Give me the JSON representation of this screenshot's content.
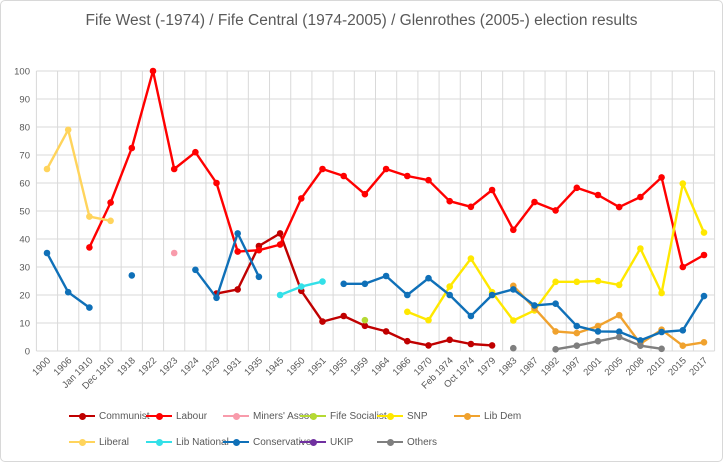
{
  "title": "Fife West (-1974) / Fife Central (1974-2005) / Glenrothes (2005-) election results",
  "colors": {
    "background": "#FFFFFF",
    "frame_border": "#D8D8D8",
    "gridline": "#D9D9D9",
    "axis_text": "#595959",
    "title_text": "#595959",
    "legend_text": "#595959"
  },
  "chart_data": {
    "type": "line",
    "title": "Fife West (-1974) / Fife Central (1974-2005) / Glenrothes (2005-) election results",
    "xlabel": "",
    "ylabel": "",
    "ylim": [
      0,
      100
    ],
    "y_tick_step": 10,
    "grid": true,
    "legend_position": "bottom",
    "categories": [
      "1900",
      "1906",
      "Jan 1910",
      "Dec 1910",
      "1918",
      "1922",
      "1923",
      "1924",
      "1929",
      "1931",
      "1935",
      "1945",
      "1950",
      "1951",
      "1955",
      "1959",
      "1964",
      "1966",
      "1970",
      "Feb 1974",
      "Oct 1974",
      "1979",
      "1983",
      "1987",
      "1992",
      "1997",
      "2001",
      "2005",
      "2008",
      "2010",
      "2015",
      "2017"
    ],
    "series": [
      {
        "name": "Communist",
        "color": "#C00000",
        "legend_row": 0,
        "legend_col": 0,
        "segments": [
          [
            [
              8,
              20.5
            ],
            [
              9,
              22
            ],
            [
              10,
              37.5
            ],
            [
              11,
              42
            ],
            [
              12,
              21.5
            ],
            [
              13,
              10.5
            ],
            [
              14,
              12.5
            ],
            [
              15,
              9
            ],
            [
              16,
              7
            ],
            [
              17,
              3.5
            ],
            [
              18,
              2
            ],
            [
              19,
              4
            ],
            [
              20,
              2.5
            ],
            [
              21,
              2
            ]
          ]
        ]
      },
      {
        "name": "Labour",
        "color": "#FF0000",
        "legend_row": 0,
        "legend_col": 1,
        "segments": [
          [
            [
              2,
              37
            ],
            [
              3,
              53
            ],
            [
              4,
              72.5
            ],
            [
              5,
              100
            ],
            [
              6,
              65
            ],
            [
              7,
              71
            ],
            [
              8,
              60
            ],
            [
              9,
              35.5
            ],
            [
              10,
              36
            ],
            [
              11,
              38
            ],
            [
              12,
              54.5
            ],
            [
              13,
              65
            ],
            [
              14,
              62.5
            ],
            [
              15,
              56
            ],
            [
              16,
              65
            ],
            [
              17,
              62.5
            ],
            [
              18,
              61
            ],
            [
              19,
              53.5
            ],
            [
              20,
              51.5
            ],
            [
              21,
              57.5
            ],
            [
              22,
              43.3
            ],
            [
              23,
              53.2
            ],
            [
              24,
              50.2
            ],
            [
              25,
              58.3
            ],
            [
              26,
              55.7
            ],
            [
              27,
              51.4
            ],
            [
              28,
              55
            ],
            [
              29,
              62
            ],
            [
              30,
              30
            ],
            [
              31,
              34.3
            ]
          ]
        ]
      },
      {
        "name": "Miners' Assoc",
        "color": "#F89BAB",
        "legend_row": 0,
        "legend_col": 2,
        "segments": [
          [
            [
              6,
              35
            ]
          ]
        ]
      },
      {
        "name": "Fife Socialist",
        "color": "#B5D934",
        "legend_row": 0,
        "legend_col": 3,
        "segments": [
          [
            [
              15,
              11
            ]
          ]
        ]
      },
      {
        "name": "SNP",
        "color": "#FFE800",
        "legend_row": 0,
        "legend_col": 4,
        "segments": [
          [
            [
              17,
              14
            ],
            [
              18,
              11
            ],
            [
              19,
              23
            ],
            [
              20,
              33
            ],
            [
              21,
              21
            ],
            [
              22,
              10.9
            ],
            [
              23,
              14.5
            ],
            [
              24,
              24.7
            ],
            [
              25,
              24.7
            ],
            [
              26,
              25
            ],
            [
              27,
              23.6
            ],
            [
              28,
              36.6
            ],
            [
              29,
              20.7
            ],
            [
              30,
              59.8
            ],
            [
              31,
              42.3
            ]
          ]
        ]
      },
      {
        "name": "Lib Dem",
        "color": "#F0A22E",
        "legend_row": 0,
        "legend_col": 5,
        "segments": [
          [
            [
              22,
              23.3
            ],
            [
              23,
              15.3
            ],
            [
              24,
              7
            ],
            [
              25,
              6.4
            ],
            [
              26,
              8.9
            ],
            [
              27,
              12.8
            ],
            [
              28,
              2.6
            ],
            [
              29,
              7.6
            ],
            [
              30,
              1.9
            ],
            [
              31,
              3.1
            ]
          ]
        ]
      },
      {
        "name": "Liberal",
        "color": "#FFD45C",
        "legend_row": 1,
        "legend_col": 0,
        "segments": [
          [
            [
              0,
              65
            ],
            [
              1,
              79
            ],
            [
              2,
              48
            ],
            [
              3,
              46.5
            ]
          ]
        ]
      },
      {
        "name": "Lib National",
        "color": "#33E0E8",
        "legend_row": 1,
        "legend_col": 1,
        "segments": [
          [
            [
              11,
              20
            ],
            [
              12,
              23
            ],
            [
              13,
              24.8
            ]
          ]
        ]
      },
      {
        "name": "Conservative",
        "color": "#0F70B8",
        "legend_row": 1,
        "legend_col": 2,
        "segments": [
          [
            [
              0,
              35
            ],
            [
              1,
              21
            ],
            [
              2,
              15.5
            ]
          ],
          [
            [
              4,
              27
            ]
          ],
          [
            [
              7,
              29
            ],
            [
              8,
              19
            ],
            [
              9,
              42
            ],
            [
              10,
              26.5
            ]
          ],
          [
            [
              14,
              24
            ],
            [
              15,
              24
            ],
            [
              16,
              26.8
            ],
            [
              17,
              20
            ],
            [
              18,
              26
            ],
            [
              19,
              20
            ],
            [
              20,
              12.5
            ],
            [
              21,
              20
            ],
            [
              22,
              22
            ],
            [
              23,
              16.3
            ],
            [
              24,
              16.9
            ],
            [
              25,
              8.9
            ],
            [
              26,
              7
            ],
            [
              27,
              6.9
            ],
            [
              28,
              3.8
            ],
            [
              29,
              6.8
            ],
            [
              30,
              7.4
            ],
            [
              31,
              19.6
            ]
          ]
        ]
      },
      {
        "name": "UKIP",
        "color": "#7030A0",
        "legend_row": 1,
        "legend_col": 3,
        "segments": []
      },
      {
        "name": "Others",
        "color": "#7F7F7F",
        "legend_row": 1,
        "legend_col": 4,
        "segments": [
          [
            [
              22,
              1
            ]
          ],
          [
            [
              24,
              0.6
            ],
            [
              25,
              1.9
            ],
            [
              26,
              3.5
            ],
            [
              27,
              5
            ],
            [
              28,
              1.9
            ],
            [
              29,
              0.8
            ]
          ]
        ]
      }
    ]
  }
}
